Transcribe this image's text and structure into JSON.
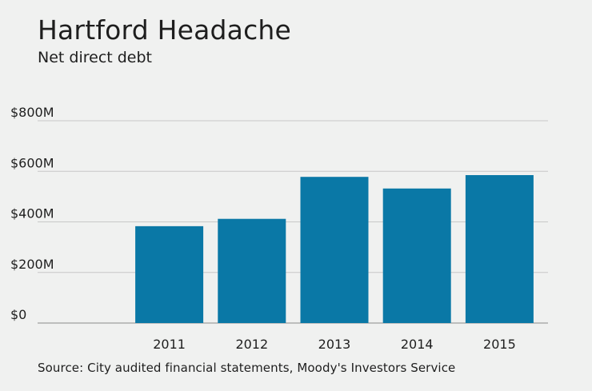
{
  "chart_data": {
    "type": "bar",
    "title": "Hartford Headache",
    "subtitle": "Net direct debt",
    "categories": [
      "2011",
      "2012",
      "2013",
      "2014",
      "2015"
    ],
    "values": [
      383,
      412,
      578,
      532,
      585
    ],
    "ylim": [
      0,
      800
    ],
    "yticks": [
      0,
      200,
      400,
      600,
      800
    ],
    "ytick_labels": [
      "$0",
      "$200M",
      "$400M",
      "$600M",
      "$800M"
    ],
    "xlabel": "",
    "ylabel": "",
    "units": "millions of dollars",
    "grid": true,
    "bar_color": "#0a78a6",
    "source": "Source: City audited financial statements, Moody's Investors Service"
  }
}
